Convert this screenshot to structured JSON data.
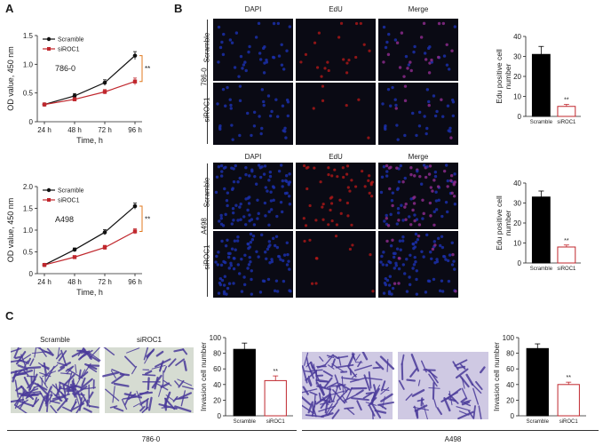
{
  "panels": {
    "a": "A",
    "b": "B",
    "c": "C"
  },
  "line_charts": [
    {
      "type": "line",
      "cell_line": "786-0",
      "xlabel": "Time, h",
      "ylabel": "OD value, 450 nm",
      "categories": [
        "24 h",
        "48 h",
        "72 h",
        "96 h"
      ],
      "ylim": [
        0,
        1.5
      ],
      "yticks": [
        "0",
        "0.5",
        "1.0",
        "1.5"
      ],
      "significance": "**",
      "series": [
        {
          "name": "Scramble",
          "values": [
            0.3,
            0.45,
            0.68,
            1.15
          ],
          "errors": [
            0.02,
            0.04,
            0.05,
            0.07
          ],
          "color": "#111111"
        },
        {
          "name": "siROC1",
          "values": [
            0.3,
            0.39,
            0.52,
            0.7
          ],
          "errors": [
            0.02,
            0.03,
            0.04,
            0.06
          ],
          "color": "#c0272d"
        }
      ]
    },
    {
      "type": "line",
      "cell_line": "A498",
      "xlabel": "Time, h",
      "ylabel": "OD value, 450 nm",
      "categories": [
        "24 h",
        "48 h",
        "72 h",
        "96 h"
      ],
      "ylim": [
        0,
        2.0
      ],
      "yticks": [
        "0",
        "0.5",
        "1.0",
        "1.5",
        "2.0"
      ],
      "significance": "**",
      "series": [
        {
          "name": "Scramble",
          "values": [
            0.2,
            0.55,
            0.95,
            1.55
          ],
          "errors": [
            0.02,
            0.04,
            0.06,
            0.07
          ],
          "color": "#111111"
        },
        {
          "name": "siROC1",
          "values": [
            0.2,
            0.38,
            0.6,
            0.97
          ],
          "errors": [
            0.02,
            0.03,
            0.05,
            0.06
          ],
          "color": "#c0272d"
        }
      ]
    }
  ],
  "bar_charts": [
    {
      "type": "bar",
      "id": "edu-786",
      "ylabel": "Edu positive cell\nnumber",
      "ylabel_lines": [
        "Edu positive cell",
        "number"
      ],
      "categories": [
        "Scramble",
        "siROC1"
      ],
      "values": [
        31,
        5
      ],
      "errors": [
        4,
        1
      ],
      "ylim": [
        0,
        40
      ],
      "yticks": [
        "0",
        "10",
        "20",
        "30",
        "40"
      ],
      "significance": "**"
    },
    {
      "type": "bar",
      "id": "edu-a498",
      "ylabel_lines": [
        "Edu positive cell",
        "number"
      ],
      "categories": [
        "Scramble",
        "siROC1"
      ],
      "values": [
        33,
        8
      ],
      "errors": [
        3,
        1
      ],
      "ylim": [
        0,
        40
      ],
      "yticks": [
        "0",
        "10",
        "20",
        "30",
        "40"
      ],
      "significance": "**"
    },
    {
      "type": "bar",
      "id": "invasion-786",
      "ylabel_lines": [
        "Invasion cell number"
      ],
      "categories": [
        "Scramble",
        "siROC1"
      ],
      "values": [
        85,
        45
      ],
      "errors": [
        8,
        6
      ],
      "ylim": [
        0,
        100
      ],
      "yticks": [
        "0",
        "20",
        "40",
        "60",
        "80",
        "100"
      ],
      "significance": "**"
    },
    {
      "type": "bar",
      "id": "invasion-a498",
      "ylabel_lines": [
        "Invasion cell number"
      ],
      "categories": [
        "Scramble",
        "siROC1"
      ],
      "values": [
        86,
        40
      ],
      "errors": [
        6,
        3
      ],
      "ylim": [
        0,
        100
      ],
      "yticks": [
        "0",
        "20",
        "40",
        "60",
        "80",
        "100"
      ],
      "significance": "**"
    }
  ],
  "fluorescence": {
    "columns": [
      "DAPI",
      "EdU",
      "Merge"
    ],
    "rows_786": [
      "Scramble",
      "siROC1"
    ],
    "rows_a498": [
      "Scramble",
      "siROC1"
    ],
    "group_786": "786-0",
    "group_a498": "A498",
    "colors": {
      "dapi": "#1b2fa8",
      "edu": "#b01818",
      "bg": "#0a0a14"
    }
  },
  "invasion": {
    "labels": [
      "Scramble",
      "siROC1"
    ],
    "group_786": "786-0",
    "group_a498": "A498",
    "colors": {
      "stain": "#4a3a9a",
      "bg_786": "#d6dcd2",
      "bg_a498": "#cfc9e3"
    }
  }
}
